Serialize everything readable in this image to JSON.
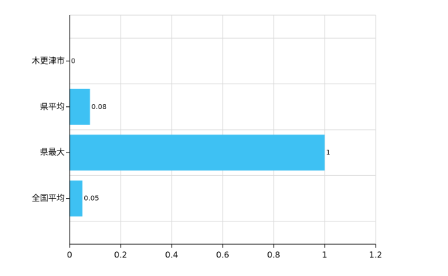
{
  "chart_data": {
    "type": "barh",
    "categories": [
      "木更津市",
      "県平均",
      "県最大",
      "全国平均"
    ],
    "values": [
      0,
      0.08,
      1,
      0.05
    ],
    "color": "#3ec1f3",
    "xlim": [
      0,
      1.2
    ],
    "xticks": [
      0,
      0.2,
      0.4,
      0.6,
      0.8,
      1,
      1.2
    ],
    "grid": true
  }
}
